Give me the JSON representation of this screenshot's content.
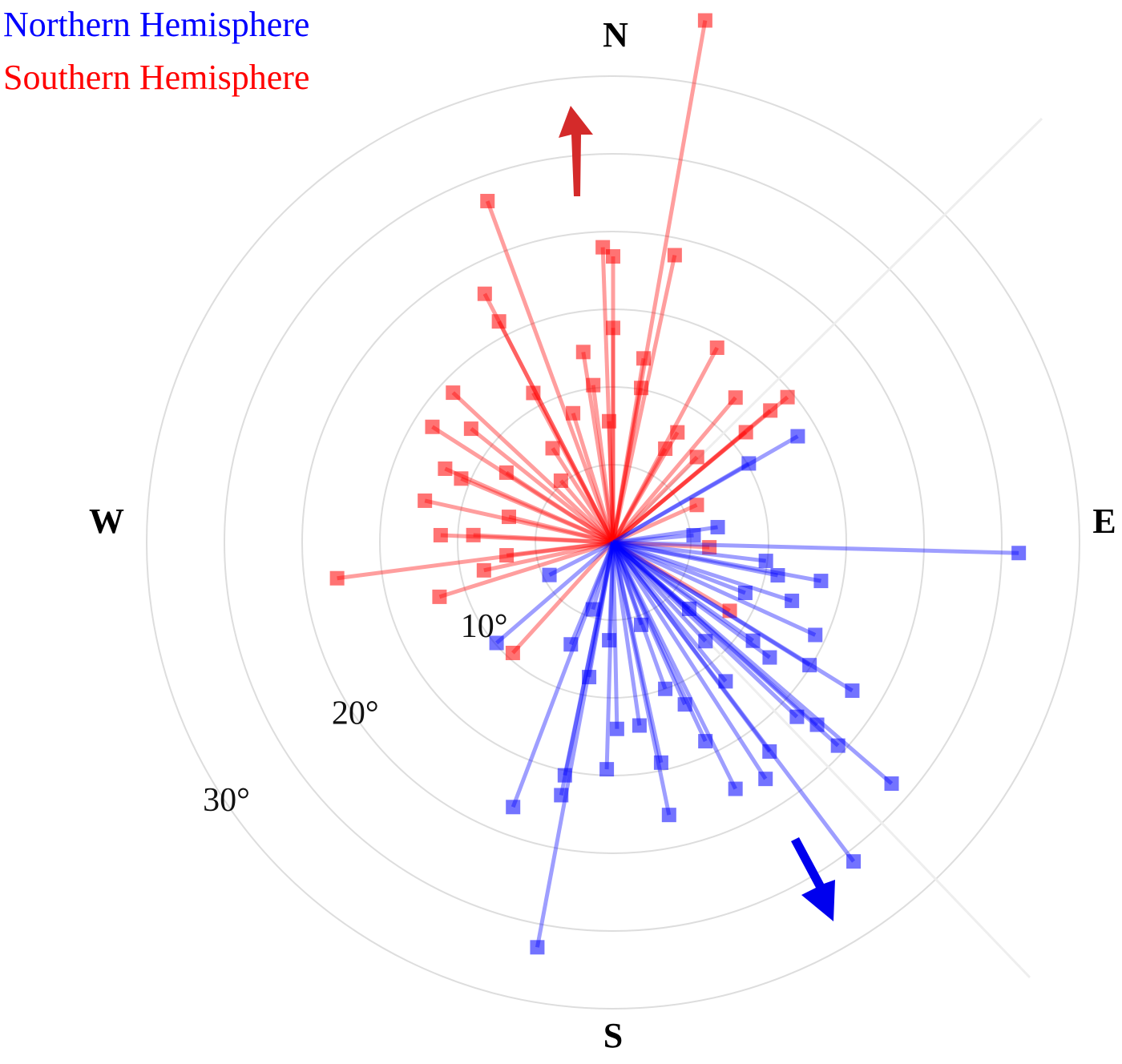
{
  "chart_data": {
    "type": "polar",
    "legend": "upper left",
    "direction_labels": [
      "N",
      "E",
      "S",
      "W"
    ],
    "rlim": [
      0,
      30
    ],
    "rgrid": [
      5,
      10,
      15,
      20,
      25,
      30
    ],
    "rticks": [
      {
        "value": 10,
        "label": "10°"
      },
      {
        "value": 20,
        "label": "20°"
      },
      {
        "value": 30,
        "label": "30°"
      }
    ],
    "series": [
      {
        "name": "Southern Hemisphere",
        "color": "#ff0000",
        "theta": [
          10,
          339.8,
          358,
          0,
          12.1,
          332.7,
          332.7,
          0,
          28.1,
          351.1,
          313.1,
          40.2,
          50.2,
          302.6,
          308.7,
          50.0,
          50.3,
          293.7,
          292.8,
          282.5,
          272.4,
          262.6,
          252.6,
          222.2,
          331.9,
          10.3,
          342.8,
          358.1,
          29.1,
          44.5,
          303.2,
          283.8,
          273.0,
          263.1,
          257.8,
          92.9,
          120.4,
          65.9,
          352.8,
          327.3,
          9.4,
          30.3,
          319.8
        ],
        "r": [
          34.1,
          23.4,
          19.0,
          18.4,
          18.9,
          18.0,
          16.0,
          13.8,
          14.2,
          12.4,
          14.1,
          12.2,
          14.6,
          13.8,
          11.7,
          13.2,
          11.1,
          11.8,
          10.6,
          12.4,
          11.1,
          17.9,
          11.7,
          9.6,
          10.9,
          10.1,
          8.7,
          7.8,
          6.9,
          7.7,
          8.2,
          6.9,
          9.0,
          6.9,
          8.5,
          6.2,
          8.7,
          5.9,
          10.2,
          7.2,
          12.0,
          8.2,
          5.2
        ]
      },
      {
        "name": "Northern Hemisphere",
        "color": "#0000ff",
        "theta": [
          91.5,
          190.6,
          143.0,
          130.9,
          200.7,
          168.4,
          191.6,
          153.6,
          147.2,
          121.8,
          132.1,
          181.6,
          191.7,
          167.7,
          143.2,
          131.8,
          100.5,
          101.3,
          114.6,
          108.1,
          133.5,
          155.1,
          178.8,
          171.8,
          229.2,
          242.9,
          202.5,
          190.1,
          81.7,
          84.9,
          59.8,
          60.1,
          125.1,
          141.0,
          156.1,
          160.4,
          110.9,
          182.3,
          161.2,
          96.9,
          131.1,
          196.8,
          122.0,
          126.3,
          136.9
        ],
        "r": [
          26.1,
          26.5,
          25.7,
          23.7,
          18.2,
          17.9,
          16.6,
          17.7,
          18.1,
          18.1,
          19.5,
          14.6,
          15.3,
          14.5,
          16.8,
          17.6,
          13.6,
          10.8,
          14.3,
          12.1,
          16.3,
          14.1,
          12.0,
          11.9,
          9.9,
          4.6,
          7.1,
          8.8,
          6.8,
          5.2,
          10.1,
          13.7,
          11.0,
          11.5,
          11.4,
          10.0,
          9.1,
          6.3,
          5.6,
          9.9,
          6.5,
          4.5,
          14.9,
          12.5,
          8.7
        ]
      }
    ]
  }
}
